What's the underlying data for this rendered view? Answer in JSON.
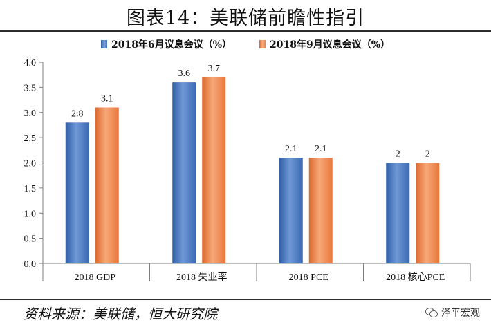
{
  "figure": {
    "title": "图表14：美联储前瞻性指引",
    "source": "资料来源：美联储，恒大研究院",
    "watermark": "泽平宏观"
  },
  "colors": {
    "series_june": "#4f7ec4",
    "series_sept": "#f0874b",
    "axis": "#7f7f7f"
  },
  "chart_data": {
    "type": "bar",
    "title": "",
    "xlabel": "",
    "ylabel": "",
    "ylim": [
      0,
      4
    ],
    "y_ticks": [
      "0.0",
      "0.5",
      "1.0",
      "1.5",
      "2.0",
      "2.5",
      "3.0",
      "3.5",
      "4.0"
    ],
    "categories": [
      "2018 GDP",
      "2018 失业率",
      "2018 PCE",
      "2018 核心PCE"
    ],
    "series": [
      {
        "name": "2018年6月议息会议（%）",
        "values": [
          2.8,
          3.6,
          2.1,
          2.0
        ],
        "labels": [
          "2.8",
          "3.6",
          "2.1",
          "2"
        ]
      },
      {
        "name": "2018年9月议息会议（%）",
        "values": [
          3.1,
          3.7,
          2.1,
          2.0
        ],
        "labels": [
          "3.1",
          "3.7",
          "2.1",
          "2"
        ]
      }
    ],
    "legend": "top-center",
    "grid": false
  }
}
